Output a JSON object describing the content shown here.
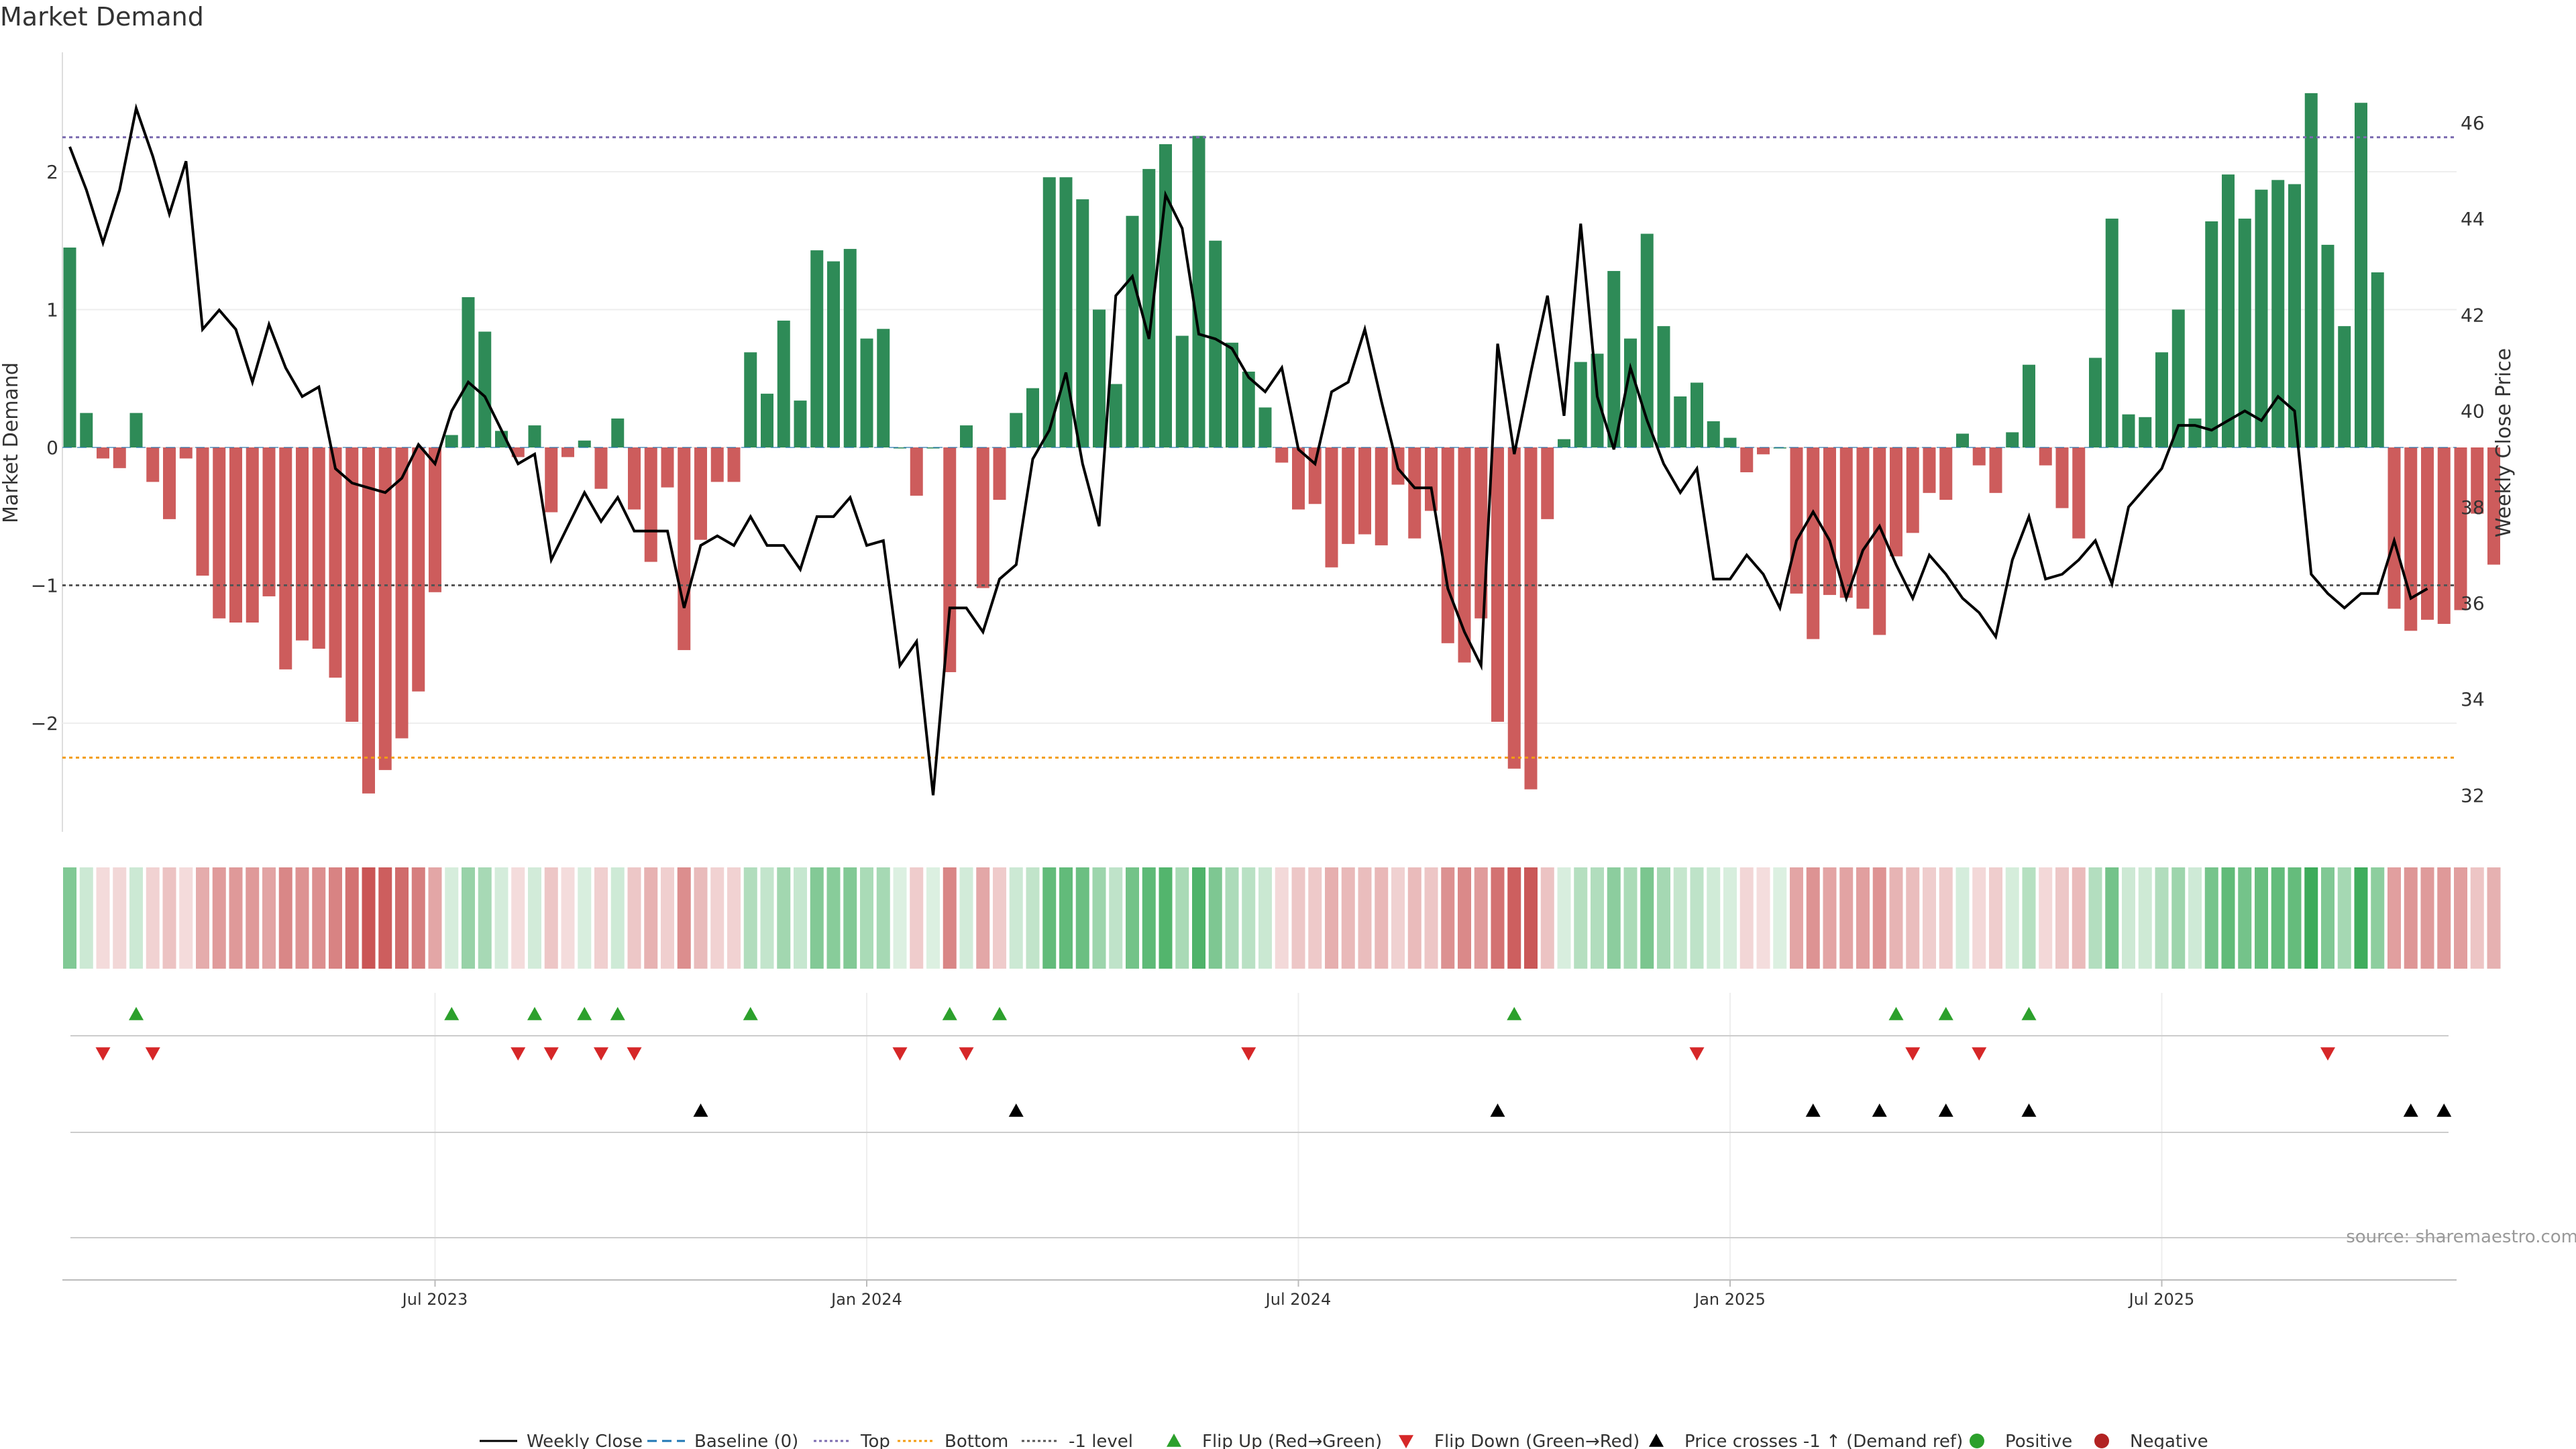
{
  "title": "Market Demand",
  "source": "source: sharemaestro.com",
  "colors": {
    "positive": "#2e8b57",
    "negative": "#cd5c5c",
    "price": "#000000",
    "top_line": "#7b6bb0",
    "bottom_line": "#f39c12",
    "neg1_line": "#555555",
    "baseline": "#1f77b4",
    "flip_up": "#2ca02c",
    "flip_down": "#d62728",
    "cross": "#000000",
    "legend_positive": "#2ca02c",
    "legend_negative": "#b22222"
  },
  "legend": [
    {
      "label": "Weekly Close",
      "kind": "solid-line",
      "color": "#000000"
    },
    {
      "label": "Baseline (0)",
      "kind": "dashed-line",
      "color": "#1f77b4"
    },
    {
      "label": "Top",
      "kind": "dotted-line",
      "color": "#7b6bb0"
    },
    {
      "label": "Bottom",
      "kind": "dotted-line",
      "color": "#f39c12"
    },
    {
      "label": "-1 level",
      "kind": "dotted-line",
      "color": "#555555"
    },
    {
      "label": "Flip Up (Red→Green)",
      "kind": "tri-up",
      "color": "#2ca02c"
    },
    {
      "label": "Flip Down (Green→Red)",
      "kind": "tri-down",
      "color": "#d62728"
    },
    {
      "label": "Price crosses -1 ↑ (Demand ref)",
      "kind": "tri-up",
      "color": "#000000"
    },
    {
      "label": "Positive",
      "kind": "dot",
      "color": "#2ca02c"
    },
    {
      "label": "Negative",
      "kind": "dot",
      "color": "#b22222"
    }
  ],
  "chart_data": {
    "type": "bar",
    "ylabel": "Market Demand",
    "y2label": "Weekly Close Price",
    "ylim": [
      -2.8,
      2.85
    ],
    "y2lim": [
      31.0,
      47.3
    ],
    "yticks": [
      {
        "v": 2,
        "label": "2"
      },
      {
        "v": 1,
        "label": "1"
      },
      {
        "v": 0,
        "label": "0"
      },
      {
        "v": -1,
        "label": "−1"
      },
      {
        "v": -2,
        "label": "−2"
      }
    ],
    "y2ticks": [
      {
        "v": 46,
        "label": "46"
      },
      {
        "v": 44,
        "label": "44"
      },
      {
        "v": 42,
        "label": "42"
      },
      {
        "v": 40,
        "label": "40"
      },
      {
        "v": 38,
        "label": "38"
      },
      {
        "v": 36,
        "label": "36"
      },
      {
        "v": 34,
        "label": "34"
      },
      {
        "v": 32,
        "label": "32"
      }
    ],
    "levels": {
      "top": 2.25,
      "bottom": -2.25,
      "neg1": -1.0,
      "baseline": 0
    },
    "xticks": [
      {
        "i": 22,
        "label": "Jul 2023"
      },
      {
        "i": 48,
        "label": "Jan 2024"
      },
      {
        "i": 74,
        "label": "Jul 2024"
      },
      {
        "i": 100,
        "label": "Jan 2025"
      },
      {
        "i": 126,
        "label": "Jul 2025"
      }
    ],
    "demand": [
      1.45,
      0.25,
      -0.08,
      -0.15,
      0.25,
      -0.25,
      -0.52,
      -0.08,
      -0.93,
      -1.24,
      -1.27,
      -1.27,
      -1.08,
      -1.61,
      -1.4,
      -1.46,
      -1.67,
      -1.99,
      -2.51,
      -2.34,
      -2.11,
      -1.77,
      -1.05,
      0.09,
      1.09,
      0.84,
      0.12,
      -0.07,
      0.16,
      -0.47,
      -0.07,
      0.05,
      -0.3,
      0.21,
      -0.45,
      -0.83,
      -0.29,
      -1.47,
      -0.67,
      -0.25,
      -0.25,
      0.69,
      0.39,
      0.92,
      0.34,
      1.43,
      1.35,
      1.44,
      0.79,
      0.86,
      0.0,
      -0.35,
      0.0,
      -1.63,
      0.16,
      -1.02,
      -0.38,
      0.25,
      0.43,
      1.96,
      1.96,
      1.8,
      1.0,
      0.46,
      1.68,
      2.02,
      2.2,
      0.81,
      2.26,
      1.5,
      0.76,
      0.55,
      0.29,
      -0.11,
      -0.45,
      -0.41,
      -0.87,
      -0.7,
      -0.63,
      -0.71,
      -0.27,
      -0.66,
      -0.46,
      -1.42,
      -1.56,
      -1.24,
      -1.99,
      -2.33,
      -2.48,
      -0.52,
      0.06,
      0.62,
      0.68,
      1.28,
      0.79,
      1.55,
      0.88,
      0.37,
      0.47,
      0.19,
      0.07,
      -0.18,
      -0.05,
      0.0,
      -1.06,
      -1.39,
      -1.07,
      -1.09,
      -1.17,
      -1.36,
      -0.79,
      -0.62,
      -0.33,
      -0.38,
      0.1,
      -0.13,
      -0.33,
      0.11,
      0.6,
      -0.13,
      -0.44,
      -0.66,
      0.65,
      1.66,
      0.24,
      0.22,
      0.69,
      1.0,
      0.21,
      1.64,
      1.98,
      1.66,
      1.87,
      1.94,
      1.91,
      2.57,
      1.47,
      0.88,
      2.5,
      1.27,
      -1.17,
      -1.33,
      -1.25,
      -1.28,
      -1.18,
      -0.48,
      -0.85
    ],
    "price": [
      45.5,
      44.6,
      43.5,
      44.6,
      46.3,
      45.3,
      44.1,
      45.2,
      41.7,
      42.1,
      41.7,
      40.6,
      41.8,
      40.9,
      40.3,
      40.5,
      38.8,
      38.5,
      38.4,
      38.3,
      38.6,
      39.3,
      38.9,
      40.0,
      40.6,
      40.3,
      39.6,
      38.9,
      39.1,
      36.9,
      37.6,
      38.3,
      37.7,
      38.2,
      37.5,
      37.5,
      37.5,
      35.9,
      37.2,
      37.4,
      37.2,
      37.8,
      37.2,
      37.2,
      36.7,
      37.8,
      37.8,
      38.2,
      37.2,
      37.3,
      34.7,
      35.2,
      32.0,
      35.9,
      35.9,
      35.4,
      36.5,
      36.8,
      39.0,
      39.6,
      40.8,
      38.9,
      37.6,
      42.4,
      42.8,
      41.5,
      44.5,
      43.8,
      41.6,
      41.5,
      41.3,
      40.7,
      40.4,
      40.9,
      39.2,
      38.9,
      40.4,
      40.6,
      41.7,
      40.2,
      38.8,
      38.4,
      38.4,
      36.3,
      35.4,
      34.7,
      41.4,
      39.1,
      40.8,
      42.4,
      39.9,
      43.9,
      40.3,
      39.2,
      40.9,
      39.8,
      38.9,
      38.3,
      38.8,
      36.5,
      36.5,
      37.0,
      36.6,
      35.9,
      37.3,
      37.9,
      37.3,
      36.1,
      37.1,
      37.6,
      36.8,
      36.1,
      37.0,
      36.6,
      36.1,
      35.8,
      35.3,
      36.9,
      37.8,
      36.5,
      36.6,
      36.9,
      37.3,
      36.4,
      38.0,
      38.4,
      38.8,
      39.7,
      39.7,
      39.6,
      39.8,
      40.0,
      39.8,
      40.3,
      40.0,
      36.6,
      36.2,
      35.9,
      36.2,
      36.2,
      37.3,
      36.1,
      36.3
    ],
    "flip_up": [
      4,
      23,
      28,
      31,
      33,
      41,
      53,
      56,
      87,
      110,
      113,
      118
    ],
    "flip_down": [
      2,
      5,
      27,
      29,
      32,
      34,
      50,
      54,
      71,
      98,
      111,
      115,
      136
    ],
    "price_cross_up": [
      38,
      57,
      86,
      105,
      109,
      113,
      118,
      141,
      143
    ]
  }
}
